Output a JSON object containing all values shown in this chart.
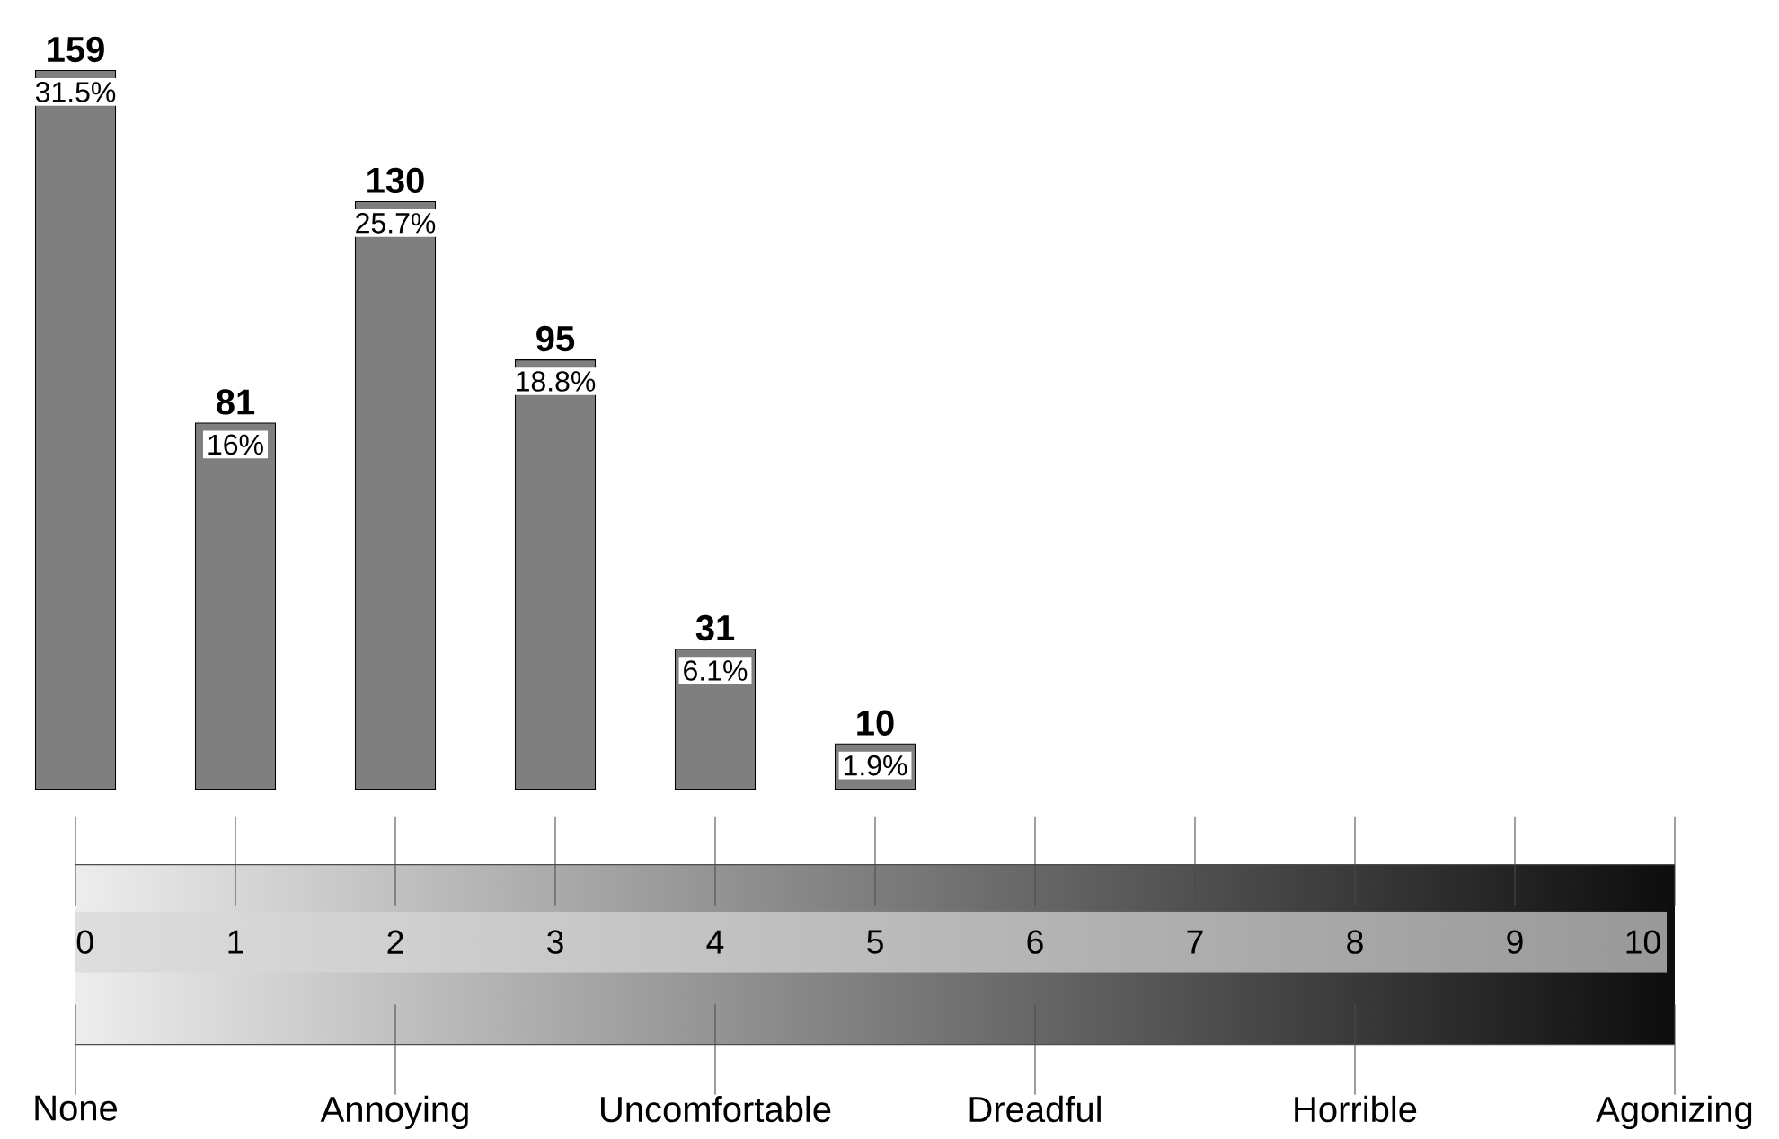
{
  "chart_data": {
    "type": "bar",
    "x": [
      0,
      1,
      2,
      3,
      4,
      5
    ],
    "values": [
      159,
      81,
      130,
      95,
      31,
      10
    ],
    "data_labels": true,
    "color": "#7f7f7f",
    "xlim": [
      0,
      10
    ],
    "xticks": [
      0,
      1,
      2,
      3,
      4,
      5,
      6,
      7,
      8,
      9,
      10
    ],
    "annotations": [
      {
        "text": "31.5%",
        "x": 0,
        "y": 159
      },
      {
        "text": "16%",
        "x": 1,
        "y": 81
      },
      {
        "text": "25.7%",
        "x": 2,
        "y": 130
      },
      {
        "text": "18.8%",
        "x": 3,
        "y": 95
      },
      {
        "text": "6.1%",
        "x": 4,
        "y": 31
      },
      {
        "text": "1.9%",
        "x": 5,
        "y": 10
      },
      "None",
      "Annoying",
      "Uncomfortable",
      "Dreadful",
      "Horrible",
      "Agonizing"
    ]
  }
}
